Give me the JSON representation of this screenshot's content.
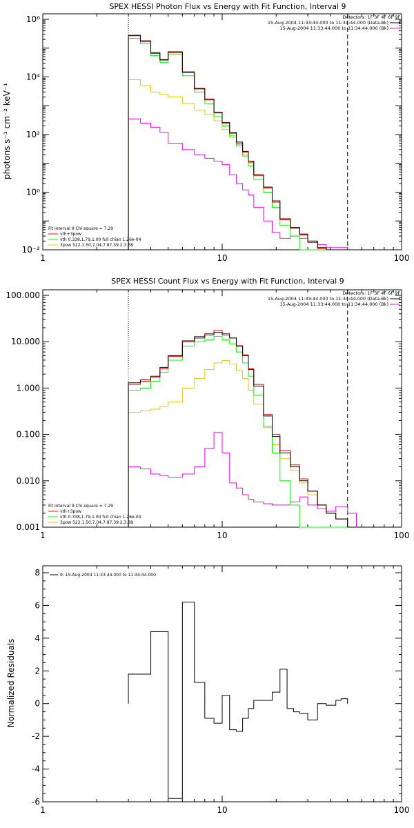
{
  "chart_data": [
    {
      "type": "line",
      "panel": "photon",
      "title": "SPEX HESSI Photon Flux vs Energy with Fit Function, Interval 9",
      "xlabel": "",
      "ylabel": "photons s⁻¹ cm⁻² keV⁻¹",
      "x_scale": "log",
      "y_scale": "log",
      "xlim": [
        1,
        100
      ],
      "ylim": [
        0.01,
        1000000
      ],
      "x_ticks": [
        1,
        10,
        100
      ],
      "x_tick_labels": [
        "1",
        "10",
        "100"
      ],
      "y_ticks": [
        0.01,
        1,
        100,
        10000,
        1000000
      ],
      "y_tick_labels": [
        "10⁻²",
        "10⁰",
        "10²",
        "10⁴",
        "10⁶"
      ],
      "vlines": [
        {
          "x": 3,
          "style": "dotted"
        },
        {
          "x": 50,
          "style": "dashed"
        }
      ],
      "header_lines": [
        "Detectors: 1F 3F 4F 6F 9F",
        "15-Aug-2004 11:33:44.000 to 11:34:44.000 (Data-Bk)",
        "15-Aug-2004 11:33:44.000 to 11:34:44.000 (Bk)"
      ],
      "header_line_colors": [
        "",
        "#000000",
        "#ff00ff"
      ],
      "fit_label": "Fit Interval 9   Chi-square = 7.29",
      "edges": [
        3.0,
        3.5,
        4.0,
        4.5,
        5.0,
        6.0,
        7.0,
        8.0,
        9.0,
        10.0,
        11.0,
        12.0,
        13.0,
        14.0,
        15.0,
        17.0,
        19.0,
        21.0,
        24.0,
        27.0,
        30.0,
        34.0,
        38.0,
        43.0,
        50.0,
        56.0
      ],
      "series": [
        {
          "name": "",
          "color": "#000000",
          "values": [
            280000,
            180000,
            70000,
            40000,
            75000,
            15000,
            4000,
            1700,
            600,
            260,
            120,
            55,
            26,
            12,
            4.0,
            1.5,
            0.5,
            0.12,
            0.06,
            0.035,
            0.02,
            0.012,
            0.01,
            0.01,
            0.01
          ]
        },
        {
          "name": "vth+3pow",
          "color": "#ff0000",
          "values": [
            270000,
            170000,
            65000,
            38000,
            70000,
            14000,
            3800,
            1600,
            560,
            250,
            110,
            50,
            24,
            11,
            3.8,
            1.4,
            0.45,
            0.11,
            0.055,
            0.033,
            0.018,
            0.011,
            0.01,
            0.01,
            0.01
          ]
        },
        {
          "name": "vth 0.338,1.79,1.00  full chian 1.26e-04",
          "color": "#00ff00",
          "values": [
            220000,
            140000,
            55000,
            32000,
            60000,
            11000,
            3000,
            1200,
            420,
            200,
            90,
            40,
            18,
            8.0,
            2.8,
            1.0,
            0.3,
            0.07,
            0.03,
            0.01,
            0.01,
            0.01,
            0.01,
            0.01,
            0.01
          ]
        },
        {
          "name": "3pow 522,1.50,7.04,7.87,39.2,3.38",
          "color": "#ffff00",
          "values": [
            8000,
            5000,
            3000,
            2500,
            2000,
            1200,
            700,
            500,
            300,
            150,
            80,
            45,
            20,
            10,
            4.0,
            1.5,
            0.5,
            0.12,
            0.06,
            0.035,
            0.02,
            0.012,
            0.01,
            0.01,
            0.01
          ]
        },
        {
          "name": "Bk",
          "color": "#ff00ff",
          "values": [
            350,
            250,
            180,
            120,
            50,
            30,
            20,
            15,
            12,
            9,
            4,
            2,
            1.2,
            0.8,
            0.3,
            0.1,
            0.04,
            0.025,
            0.03,
            0.025,
            0.02,
            0.015,
            0.012,
            0.012,
            0.01
          ]
        }
      ]
    },
    {
      "type": "line",
      "panel": "count",
      "title": "SPEX HESSI Count Flux vs Energy with Fit Function, Interval 9",
      "xlabel": "",
      "ylabel": "",
      "x_scale": "log",
      "y_scale": "log",
      "xlim": [
        1,
        100
      ],
      "ylim": [
        0.001,
        100
      ],
      "x_ticks": [
        1,
        10,
        100
      ],
      "x_tick_labels": [
        "1",
        "10",
        "100"
      ],
      "y_ticks": [
        0.001,
        0.01,
        0.1,
        1,
        10,
        100
      ],
      "y_tick_labels": [
        "0.001",
        "0.010",
        "0.100",
        "1.000",
        "10.000",
        "100.000"
      ],
      "vlines": [
        {
          "x": 3,
          "style": "dotted"
        },
        {
          "x": 50,
          "style": "dashed"
        }
      ],
      "header_lines": [
        "Detectors: 1F 3F 4F 6F 9F",
        "15-Aug-2004 11:33:44.000 to 11:34:44.000 (Data-Bk)",
        "15-Aug-2004 11:33:44.000 to 11:34:44.000 (Bk)"
      ],
      "header_line_colors": [
        "",
        "#000000",
        "#ff00ff"
      ],
      "fit_label": "Fit Interval 9   Chi-square = 7.29",
      "edges": [
        3.0,
        3.5,
        4.0,
        4.5,
        5.0,
        6.0,
        7.0,
        8.0,
        9.0,
        10.0,
        11.0,
        12.0,
        13.0,
        14.0,
        15.0,
        17.0,
        19.0,
        21.0,
        24.0,
        27.0,
        30.0,
        34.0,
        38.0,
        43.0,
        50.0,
        56.0
      ],
      "series": [
        {
          "name": "",
          "color": "#000000",
          "values": [
            1.3,
            1.5,
            1.8,
            2.8,
            5.0,
            10.0,
            12.0,
            14.0,
            16.0,
            14.0,
            12.0,
            8.0,
            5.0,
            2.5,
            1.1,
            0.25,
            0.09,
            0.04,
            0.02,
            0.01,
            0.006,
            0.003,
            0.002,
            0.0015,
            0.001
          ]
        },
        {
          "name": "vth+3pow",
          "color": "#ff0000",
          "values": [
            1.2,
            1.4,
            1.7,
            2.6,
            4.8,
            10.5,
            13.0,
            15.0,
            17.5,
            15.0,
            12.0,
            8.2,
            5.2,
            2.6,
            1.2,
            0.27,
            0.1,
            0.045,
            0.022,
            0.011,
            0.006,
            0.003,
            0.002,
            0.0015,
            0.001
          ]
        },
        {
          "name": "vth 0.338,1.79,1.00  full chian 1.26e-04",
          "color": "#00ff00",
          "values": [
            0.9,
            1.0,
            1.4,
            2.2,
            4.0,
            8.0,
            10.0,
            11.0,
            13.0,
            11.0,
            9.0,
            6.0,
            3.5,
            1.8,
            0.7,
            0.15,
            0.04,
            0.01,
            0.003,
            0.001,
            0.001,
            0.001,
            0.001,
            0.001,
            0.001
          ]
        },
        {
          "name": "3pow 522,1.50,7.04,7.87,39.2,3.38",
          "color": "#ffff00",
          "values": [
            0.3,
            0.32,
            0.35,
            0.4,
            0.5,
            1.0,
            1.6,
            2.5,
            3.5,
            3.9,
            3.3,
            2.4,
            1.6,
            0.9,
            0.45,
            0.14,
            0.06,
            0.03,
            0.017,
            0.009,
            0.005,
            0.003,
            0.002,
            0.0015,
            0.001
          ]
        },
        {
          "name": "Bk",
          "color": "#ff00ff",
          "values": [
            0.02,
            0.018,
            0.014,
            0.013,
            0.012,
            0.014,
            0.02,
            0.05,
            0.11,
            0.04,
            0.009,
            0.007,
            0.005,
            0.004,
            0.0035,
            0.0032,
            0.003,
            0.003,
            0.0035,
            0.0045,
            0.003,
            0.0025,
            0.0022,
            0.0028,
            0.002
          ]
        }
      ]
    },
    {
      "type": "line",
      "panel": "residuals",
      "title": "",
      "xlabel": "",
      "ylabel": "Normalized Residuals",
      "x_scale": "log",
      "y_scale": "linear",
      "xlim": [
        1,
        100
      ],
      "ylim": [
        -6,
        8
      ],
      "x_ticks": [
        1,
        10,
        100
      ],
      "x_tick_labels": [
        "1",
        "10",
        "100"
      ],
      "y_ticks": [
        -6,
        -4,
        -2,
        0,
        2,
        4,
        6,
        8
      ],
      "y_tick_labels": [
        "-6",
        "-4",
        "-2",
        "0",
        "2",
        "4",
        "6",
        "8"
      ],
      "legend_label": "9: 15-Aug-2004 11:33:44.000 to 11:34:44.000",
      "edges": [
        3.0,
        4.0,
        5.0,
        6.0,
        7.0,
        8.0,
        9.0,
        10.0,
        11.0,
        12.0,
        13.0,
        14.0,
        15.0,
        17.0,
        19.0,
        21.0,
        23.0,
        25.0,
        27.0,
        30.0,
        34.0,
        38.0,
        43.0,
        46.0,
        50.0
      ],
      "series": [
        {
          "name": "9: 15-Aug-2004 11:33:44.000 to 11:34:44.000",
          "color": "#000000",
          "values": [
            1.8,
            4.4,
            -5.8,
            6.2,
            1.3,
            -0.9,
            -1.2,
            0.5,
            -1.6,
            -1.7,
            -0.9,
            -0.3,
            0.2,
            0.2,
            0.7,
            2.1,
            -0.3,
            -0.5,
            -0.6,
            -1.0,
            0.0,
            -0.1,
            0.2,
            0.3
          ]
        }
      ]
    }
  ]
}
